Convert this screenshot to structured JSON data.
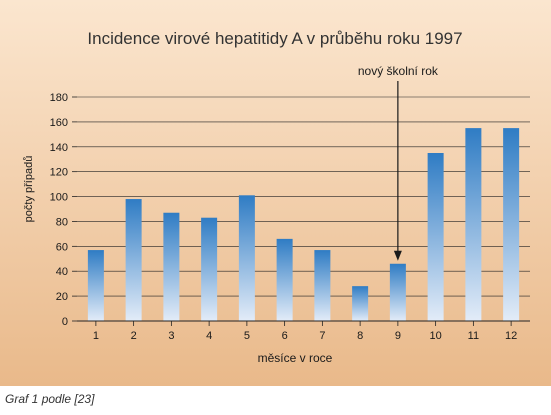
{
  "chart_data": {
    "type": "bar",
    "title": "Incidence virové hepatitidy A v průběhu roku 1997",
    "xlabel": "měsíce v roce",
    "ylabel": "počty případů",
    "categories": [
      "1",
      "2",
      "3",
      "4",
      "5",
      "6",
      "7",
      "8",
      "9",
      "10",
      "11",
      "12"
    ],
    "values": [
      57,
      98,
      87,
      83,
      101,
      66,
      57,
      28,
      46,
      135,
      155,
      155
    ],
    "ylim": [
      0,
      180
    ],
    "yticks": [
      "0",
      "20",
      "40",
      "60",
      "80",
      "100",
      "120",
      "140",
      "160",
      "180"
    ],
    "grid": true,
    "legend": "none",
    "annotation": {
      "text": "nový školní rok",
      "category": "9"
    }
  },
  "caption": {
    "lead": "Graf 1",
    "rest": " podle [23]"
  },
  "colors": {
    "background_top": "#fbe6cf",
    "background_bottom": "#e9b98a",
    "bar_top": "#2f7cc4",
    "bar_bottom": "#e3ecf8",
    "grid": "#222222",
    "text": "#1a1a1a",
    "title": "#333333"
  }
}
